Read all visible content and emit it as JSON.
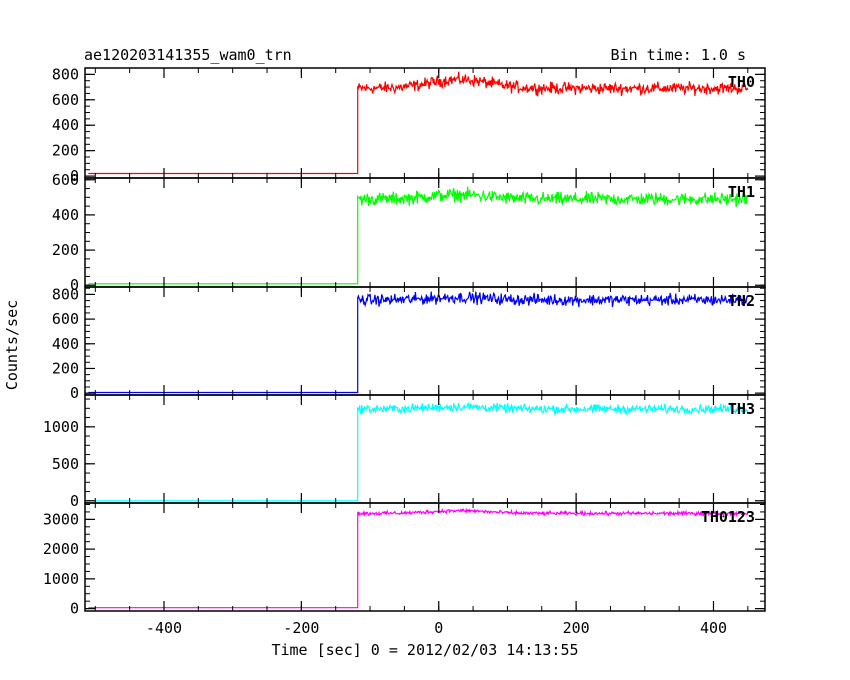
{
  "header": {
    "title": "ae120203141355_wam0_trn",
    "bin_time": "Bin time: 1.0 s"
  },
  "chart_data": {
    "type": "line",
    "xlabel": "Time [sec] 0 = 2012/02/03 14:13:55",
    "ylabel": "Counts/sec",
    "xlim": [
      -515,
      475
    ],
    "x_ticks": [
      -400,
      -200,
      0,
      200,
      400
    ],
    "panels": [
      {
        "name": "TH0",
        "color": "#ff0000",
        "ylim": [
          -15,
          850
        ],
        "y_ticks": [
          0,
          200,
          400,
          600,
          800
        ],
        "pre_level": 20,
        "post_level": 690,
        "noise": 35,
        "bump": 70,
        "step_x": -118,
        "x_end": 450
      },
      {
        "name": "TH1",
        "color": "#00ff00",
        "ylim": [
          -10,
          610
        ],
        "y_ticks": [
          0,
          200,
          400,
          600
        ],
        "pre_level": 8,
        "post_level": 490,
        "noise": 28,
        "bump": 25,
        "step_x": -118,
        "x_end": 450
      },
      {
        "name": "TH2",
        "color": "#0000ff",
        "ylim": [
          -15,
          860
        ],
        "y_ticks": [
          0,
          200,
          400,
          600,
          800
        ],
        "pre_level": 5,
        "post_level": 755,
        "noise": 35,
        "bump": 20,
        "step_x": -118,
        "x_end": 450
      },
      {
        "name": "TH3",
        "color": "#00ffff",
        "ylim": [
          -30,
          1430
        ],
        "y_ticks": [
          0,
          500,
          1000
        ],
        "pre_level": 0,
        "post_level": 1240,
        "noise": 45,
        "bump": 30,
        "step_x": -118,
        "x_end": 450
      },
      {
        "name": "TH0123",
        "color": "#ff00ff",
        "ylim": [
          -80,
          3550
        ],
        "y_ticks": [
          0,
          1000,
          2000,
          3000
        ],
        "pre_level": 30,
        "post_level": 3200,
        "noise": 45,
        "bump": 90,
        "step_x": -118,
        "x_end": 450
      }
    ]
  }
}
